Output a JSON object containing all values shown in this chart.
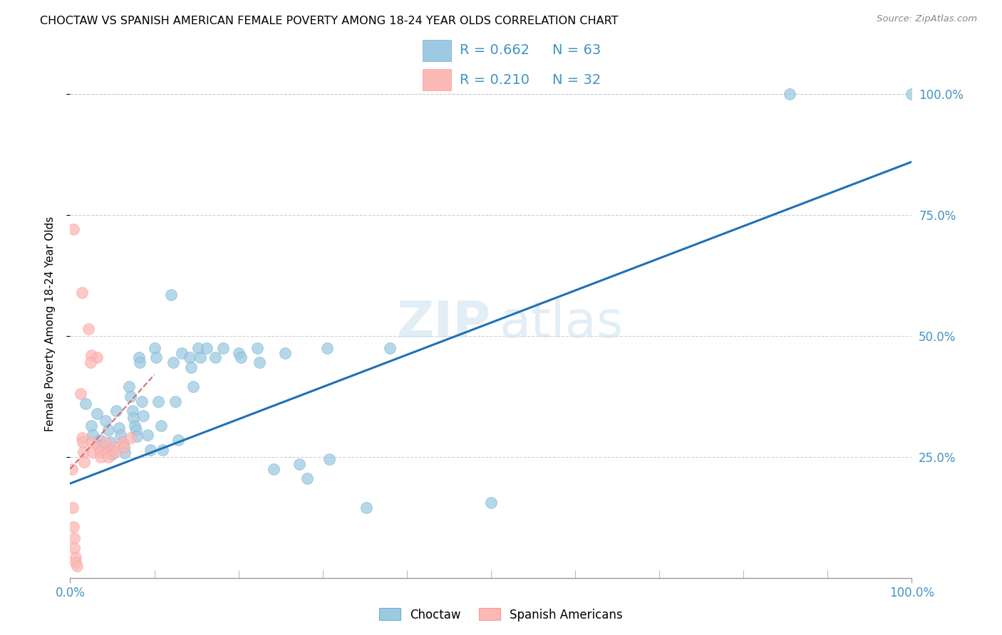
{
  "title": "CHOCTAW VS SPANISH AMERICAN FEMALE POVERTY AMONG 18-24 YEAR OLDS CORRELATION CHART",
  "source": "Source: ZipAtlas.com",
  "ylabel": "Female Poverty Among 18-24 Year Olds",
  "xlim": [
    0.0,
    1.0
  ],
  "ylim": [
    0.0,
    1.05
  ],
  "ytick_labels": [
    "25.0%",
    "50.0%",
    "75.0%",
    "100.0%"
  ],
  "ytick_positions": [
    0.25,
    0.5,
    0.75,
    1.0
  ],
  "xtick_minor_positions": [
    0.1,
    0.2,
    0.3,
    0.4,
    0.5,
    0.6,
    0.7,
    0.8,
    0.9
  ],
  "watermark_line1": "ZIP",
  "watermark_line2": "atlas",
  "legend_r1": "R = 0.662",
  "legend_n1": "N = 63",
  "legend_r2": "R = 0.210",
  "legend_n2": "N = 32",
  "blue_color": "#9ecae1",
  "pink_color": "#fcb8b5",
  "blue_fill_color": "#9ecae1",
  "pink_fill_color": "#fcb8b5",
  "blue_edge_color": "#6baed6",
  "pink_edge_color": "#fb9a99",
  "blue_line_color": "#2171b5",
  "pink_line_color": "#d4706e",
  "tick_color": "#4393c3",
  "grid_color": "#d0d0d0",
  "background_color": "#ffffff",
  "title_fontsize": 11.5,
  "source_fontsize": 9.5,
  "axis_label_fontsize": 11,
  "tick_fontsize": 12,
  "legend_fontsize": 14,
  "blue_scatter": [
    [
      0.018,
      0.36
    ],
    [
      0.025,
      0.315
    ],
    [
      0.027,
      0.295
    ],
    [
      0.032,
      0.34
    ],
    [
      0.035,
      0.285
    ],
    [
      0.038,
      0.275
    ],
    [
      0.042,
      0.325
    ],
    [
      0.045,
      0.305
    ],
    [
      0.048,
      0.28
    ],
    [
      0.048,
      0.265
    ],
    [
      0.05,
      0.255
    ],
    [
      0.055,
      0.345
    ],
    [
      0.058,
      0.31
    ],
    [
      0.06,
      0.295
    ],
    [
      0.062,
      0.28
    ],
    [
      0.064,
      0.27
    ],
    [
      0.065,
      0.258
    ],
    [
      0.07,
      0.395
    ],
    [
      0.072,
      0.375
    ],
    [
      0.074,
      0.345
    ],
    [
      0.075,
      0.33
    ],
    [
      0.077,
      0.315
    ],
    [
      0.078,
      0.305
    ],
    [
      0.079,
      0.293
    ],
    [
      0.082,
      0.455
    ],
    [
      0.083,
      0.445
    ],
    [
      0.085,
      0.365
    ],
    [
      0.087,
      0.335
    ],
    [
      0.092,
      0.295
    ],
    [
      0.095,
      0.265
    ],
    [
      0.1,
      0.475
    ],
    [
      0.102,
      0.455
    ],
    [
      0.105,
      0.365
    ],
    [
      0.108,
      0.315
    ],
    [
      0.11,
      0.265
    ],
    [
      0.12,
      0.585
    ],
    [
      0.122,
      0.445
    ],
    [
      0.125,
      0.365
    ],
    [
      0.128,
      0.285
    ],
    [
      0.133,
      0.465
    ],
    [
      0.142,
      0.455
    ],
    [
      0.144,
      0.435
    ],
    [
      0.146,
      0.395
    ],
    [
      0.152,
      0.475
    ],
    [
      0.155,
      0.455
    ],
    [
      0.162,
      0.475
    ],
    [
      0.172,
      0.455
    ],
    [
      0.182,
      0.475
    ],
    [
      0.2,
      0.465
    ],
    [
      0.203,
      0.455
    ],
    [
      0.222,
      0.475
    ],
    [
      0.225,
      0.445
    ],
    [
      0.242,
      0.225
    ],
    [
      0.255,
      0.465
    ],
    [
      0.272,
      0.235
    ],
    [
      0.282,
      0.205
    ],
    [
      0.305,
      0.475
    ],
    [
      0.308,
      0.245
    ],
    [
      0.352,
      0.145
    ],
    [
      0.38,
      0.475
    ],
    [
      0.5,
      0.155
    ],
    [
      0.855,
      1.0
    ],
    [
      1.0,
      1.0
    ]
  ],
  "pink_scatter": [
    [
      0.002,
      0.225
    ],
    [
      0.003,
      0.145
    ],
    [
      0.004,
      0.105
    ],
    [
      0.005,
      0.082
    ],
    [
      0.005,
      0.062
    ],
    [
      0.006,
      0.042
    ],
    [
      0.006,
      0.032
    ],
    [
      0.008,
      0.025
    ],
    [
      0.012,
      0.38
    ],
    [
      0.014,
      0.29
    ],
    [
      0.015,
      0.28
    ],
    [
      0.016,
      0.26
    ],
    [
      0.017,
      0.24
    ],
    [
      0.022,
      0.515
    ],
    [
      0.025,
      0.46
    ],
    [
      0.026,
      0.28
    ],
    [
      0.027,
      0.26
    ],
    [
      0.032,
      0.455
    ],
    [
      0.034,
      0.27
    ],
    [
      0.035,
      0.26
    ],
    [
      0.036,
      0.25
    ],
    [
      0.042,
      0.28
    ],
    [
      0.044,
      0.26
    ],
    [
      0.045,
      0.25
    ],
    [
      0.052,
      0.27
    ],
    [
      0.054,
      0.26
    ],
    [
      0.062,
      0.28
    ],
    [
      0.064,
      0.27
    ],
    [
      0.072,
      0.29
    ],
    [
      0.004,
      0.72
    ],
    [
      0.014,
      0.59
    ],
    [
      0.024,
      0.445
    ]
  ],
  "blue_trend": [
    0.0,
    1.0,
    0.195,
    0.86
  ],
  "pink_trend": [
    0.0,
    0.1,
    0.225,
    0.42
  ]
}
